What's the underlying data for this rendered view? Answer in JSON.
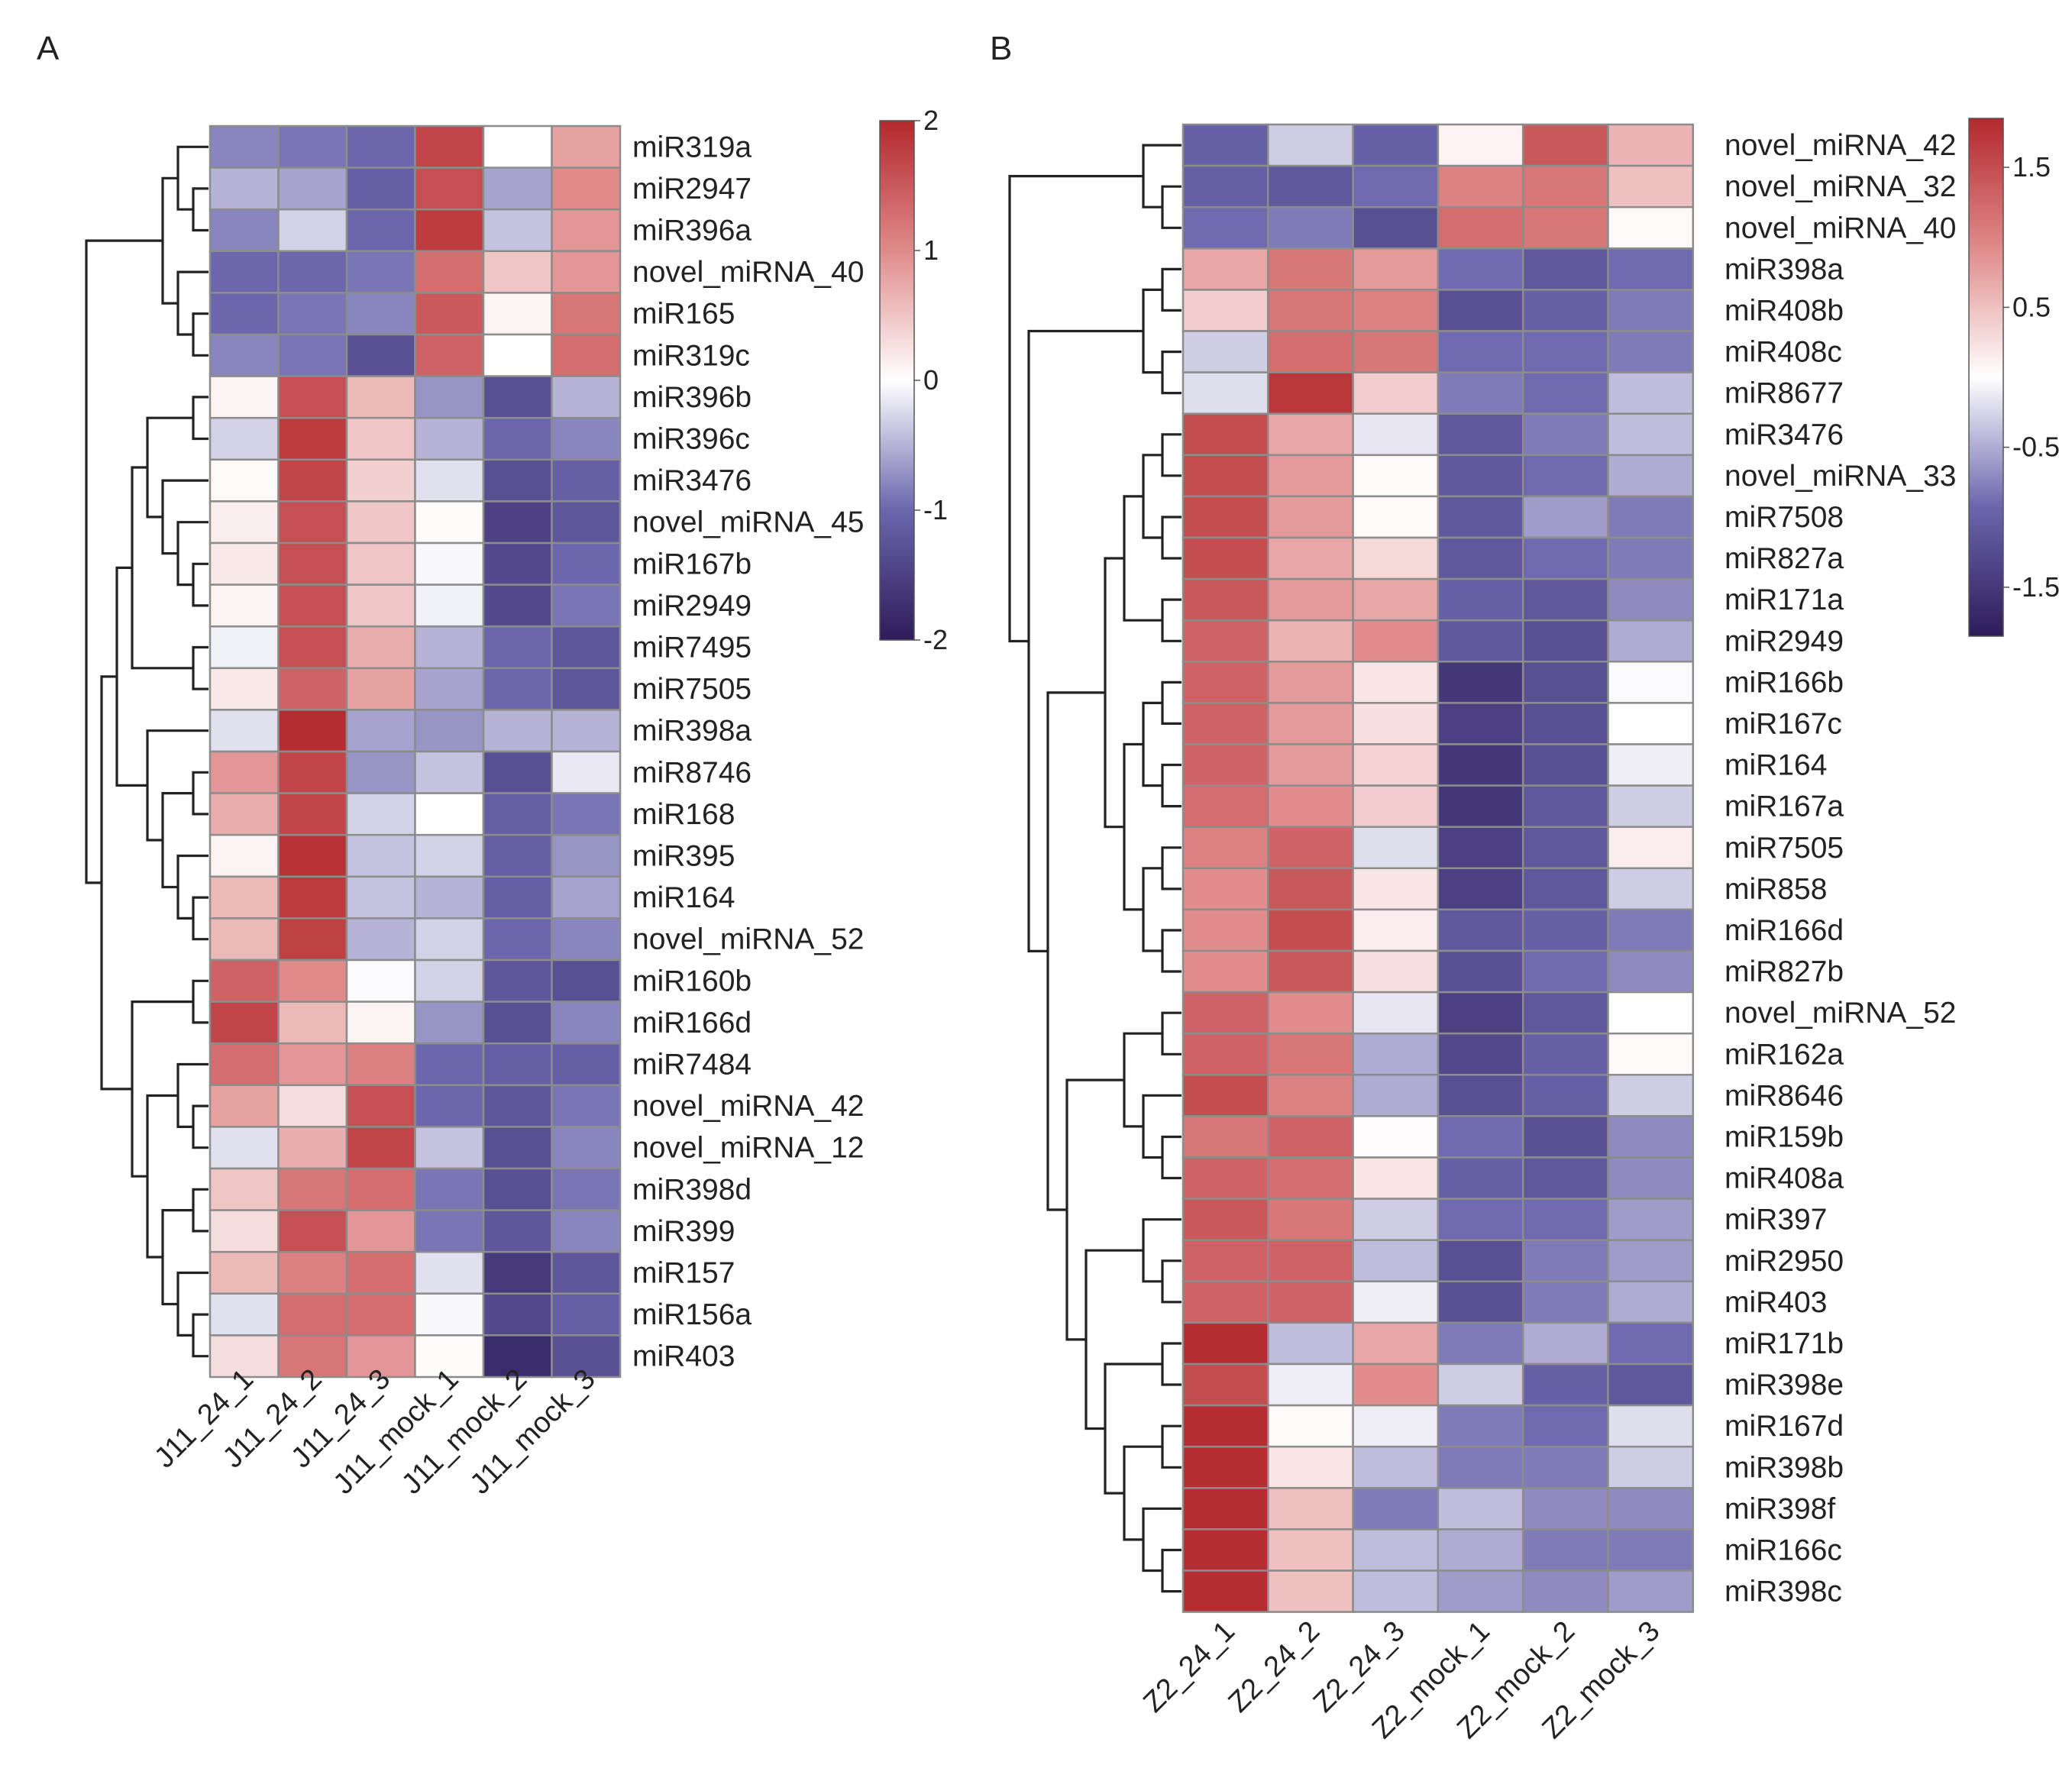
{
  "chart_data": [
    {
      "type": "heatmap",
      "panel_label": "A",
      "colormap": {
        "low": "#2e1c5a",
        "mid_low": "#6b66ad",
        "mid": "#ffffff",
        "mid_high": "#e08a8a",
        "high": "#b3282d"
      },
      "colorbar": {
        "min": -2,
        "max": 2,
        "ticks": [
          2,
          1,
          0,
          -1,
          -2
        ],
        "tick_labels": [
          "2",
          "1",
          "0",
          "-1",
          "-2"
        ]
      },
      "columns": [
        "J11_24_1",
        "J11_24_2",
        "J11_24_3",
        "J11_mock_1",
        "J11_mock_2",
        "J11_mock_3"
      ],
      "rows": [
        "miR319a",
        "miR2947",
        "miR396a",
        "novel_miRNA_40",
        "miR165",
        "miR319c",
        "miR396b",
        "miR396c",
        "miR3476",
        "novel_miRNA_45",
        "miR167b",
        "miR2949",
        "miR7495",
        "miR7505",
        "miR398a",
        "miR8746",
        "miR168",
        "miR395",
        "miR164",
        "novel_miRNA_52",
        "miR160b",
        "miR166d",
        "miR7484",
        "novel_miRNA_42",
        "novel_miRNA_12",
        "miR398d",
        "miR399",
        "miR157",
        "miR156a",
        "miR403"
      ],
      "values": [
        [
          -0.8,
          -0.9,
          -1.0,
          1.7,
          0.0,
          0.8
        ],
        [
          -0.5,
          -0.6,
          -1.1,
          1.6,
          -0.6,
          1.0
        ],
        [
          -0.8,
          -0.3,
          -1.0,
          1.8,
          -0.4,
          0.9
        ],
        [
          -1.0,
          -1.0,
          -0.9,
          1.3,
          0.5,
          0.9
        ],
        [
          -1.0,
          -0.9,
          -0.8,
          1.5,
          0.1,
          1.2
        ],
        [
          -0.8,
          -0.9,
          -1.3,
          1.4,
          0.0,
          1.3
        ],
        [
          0.1,
          1.6,
          0.6,
          -0.7,
          -1.3,
          -0.5
        ],
        [
          -0.3,
          1.8,
          0.5,
          -0.5,
          -1.0,
          -0.8
        ],
        [
          0.05,
          1.7,
          0.4,
          -0.2,
          -1.3,
          -1.1
        ],
        [
          0.15,
          1.6,
          0.5,
          0.03,
          -1.5,
          -1.2
        ],
        [
          0.2,
          1.6,
          0.5,
          -0.05,
          -1.4,
          -1.0
        ],
        [
          0.1,
          1.6,
          0.5,
          -0.1,
          -1.4,
          -0.9
        ],
        [
          -0.1,
          1.6,
          0.7,
          -0.5,
          -1.0,
          -1.2
        ],
        [
          0.2,
          1.4,
          0.8,
          -0.6,
          -1.0,
          -1.2
        ],
        [
          -0.2,
          1.95,
          -0.6,
          -0.7,
          -0.5,
          -0.5
        ],
        [
          0.9,
          1.7,
          -0.7,
          -0.4,
          -1.3,
          -0.15
        ],
        [
          0.7,
          1.7,
          -0.3,
          0.0,
          -1.1,
          -0.9
        ],
        [
          0.1,
          1.9,
          -0.4,
          -0.3,
          -1.1,
          -0.7
        ],
        [
          0.6,
          1.8,
          -0.4,
          -0.5,
          -1.1,
          -0.6
        ],
        [
          0.6,
          1.75,
          -0.5,
          -0.3,
          -1.0,
          -0.8
        ],
        [
          1.4,
          1.0,
          -0.03,
          -0.3,
          -1.2,
          -1.3
        ],
        [
          1.7,
          0.6,
          0.1,
          -0.7,
          -1.3,
          -0.8
        ],
        [
          1.3,
          0.9,
          1.1,
          -1.0,
          -1.1,
          -1.1
        ],
        [
          0.8,
          0.3,
          1.6,
          -1.0,
          -1.2,
          -0.9
        ],
        [
          -0.2,
          0.7,
          1.7,
          -0.4,
          -1.3,
          -0.8
        ],
        [
          0.5,
          1.2,
          1.3,
          -0.9,
          -1.3,
          -0.9
        ],
        [
          0.3,
          1.6,
          0.9,
          -0.9,
          -1.2,
          -0.8
        ],
        [
          0.6,
          1.1,
          1.3,
          -0.2,
          -1.6,
          -1.2
        ],
        [
          -0.2,
          1.3,
          1.3,
          -0.05,
          -1.4,
          -1.1
        ],
        [
          0.3,
          1.2,
          0.9,
          0.03,
          -1.8,
          -1.3
        ]
      ]
    },
    {
      "type": "heatmap",
      "panel_label": "B",
      "colormap": {
        "low": "#2e1c5a",
        "mid_low": "#6b66ad",
        "mid": "#ffffff",
        "mid_high": "#e08a8a",
        "high": "#b3282d"
      },
      "colorbar": {
        "min": -1.85,
        "max": 1.85,
        "ticks": [
          1.5,
          0.5,
          -0.5,
          -1.5
        ],
        "tick_labels": [
          "1.5",
          "0.5",
          "-0.5",
          "-1.5"
        ]
      },
      "columns": [
        "Z2_24_1",
        "Z2_24_2",
        "Z2_24_3",
        "Z2_mock_1",
        "Z2_mock_2",
        "Z2_mock_3"
      ],
      "rows": [
        "novel_miRNA_42",
        "novel_miRNA_32",
        "novel_miRNA_40",
        "miR398a",
        "miR408b",
        "miR408c",
        "miR8677",
        "miR3476",
        "novel_miRNA_33",
        "miR7508",
        "miR827a",
        "miR171a",
        "miR2949",
        "miR166b",
        "miR167c",
        "miR164",
        "miR167a",
        "miR7505",
        "miR858",
        "miR166d",
        "miR827b",
        "novel_miRNA_52",
        "miR162a",
        "miR8646",
        "miR159b",
        "miR408a",
        "miR397",
        "miR2950",
        "miR403",
        "miR171b",
        "miR398e",
        "miR167d",
        "miR398b",
        "miR398f",
        "miR166c",
        "miR398c"
      ],
      "values": [
        [
          -1.0,
          -0.3,
          -1.0,
          0.1,
          1.4,
          0.6
        ],
        [
          -1.0,
          -1.1,
          -0.9,
          1.0,
          1.1,
          0.5
        ],
        [
          -0.9,
          -0.8,
          -1.2,
          1.2,
          1.1,
          0.05
        ],
        [
          0.7,
          1.1,
          0.8,
          -0.9,
          -1.1,
          -0.9
        ],
        [
          0.4,
          1.1,
          1.0,
          -1.2,
          -1.0,
          -0.8
        ],
        [
          -0.3,
          1.2,
          1.1,
          -0.9,
          -0.9,
          -0.8
        ],
        [
          -0.2,
          1.7,
          0.4,
          -0.8,
          -0.9,
          -0.4
        ],
        [
          1.5,
          0.7,
          -0.15,
          -1.1,
          -0.8,
          -0.4
        ],
        [
          1.5,
          0.8,
          0.05,
          -1.1,
          -0.9,
          -0.5
        ],
        [
          1.5,
          0.8,
          0.05,
          -1.1,
          -0.6,
          -0.8
        ],
        [
          1.5,
          0.7,
          0.3,
          -1.1,
          -0.9,
          -0.8
        ],
        [
          1.4,
          0.8,
          0.7,
          -1.0,
          -1.1,
          -0.7
        ],
        [
          1.3,
          0.6,
          0.9,
          -1.1,
          -1.2,
          -0.5
        ],
        [
          1.3,
          0.8,
          0.2,
          -1.5,
          -1.2,
          -0.03
        ],
        [
          1.3,
          0.8,
          0.25,
          -1.4,
          -1.2,
          0.0
        ],
        [
          1.3,
          0.8,
          0.35,
          -1.5,
          -1.2,
          -0.1
        ],
        [
          1.2,
          0.9,
          0.4,
          -1.5,
          -1.1,
          -0.3
        ],
        [
          1.0,
          1.3,
          -0.2,
          -1.4,
          -1.1,
          0.15
        ],
        [
          0.9,
          1.4,
          0.2,
          -1.4,
          -1.1,
          -0.3
        ],
        [
          0.9,
          1.5,
          0.15,
          -1.1,
          -1.0,
          -0.8
        ],
        [
          0.9,
          1.4,
          0.25,
          -1.2,
          -0.9,
          -0.7
        ],
        [
          1.3,
          0.9,
          -0.15,
          -1.4,
          -1.1,
          0.0
        ],
        [
          1.3,
          1.1,
          -0.5,
          -1.3,
          -1.0,
          0.05
        ],
        [
          1.5,
          1.0,
          -0.5,
          -1.2,
          -1.0,
          -0.3
        ],
        [
          1.1,
          1.3,
          0.02,
          -0.9,
          -1.2,
          -0.7
        ],
        [
          1.3,
          1.2,
          0.2,
          -1.0,
          -1.1,
          -0.7
        ],
        [
          1.4,
          1.1,
          -0.3,
          -0.9,
          -0.9,
          -0.6
        ],
        [
          1.3,
          1.3,
          -0.4,
          -1.2,
          -0.8,
          -0.6
        ],
        [
          1.3,
          1.3,
          -0.1,
          -1.2,
          -0.8,
          -0.5
        ],
        [
          1.8,
          -0.4,
          0.7,
          -0.8,
          -0.5,
          -0.9
        ],
        [
          1.5,
          -0.1,
          0.9,
          -0.3,
          -1.0,
          -1.1
        ],
        [
          1.8,
          0.05,
          -0.1,
          -0.8,
          -0.9,
          -0.2
        ],
        [
          1.8,
          0.2,
          -0.4,
          -0.8,
          -0.8,
          -0.3
        ],
        [
          1.8,
          0.5,
          -0.8,
          -0.4,
          -0.7,
          -0.7
        ],
        [
          1.8,
          0.5,
          -0.4,
          -0.5,
          -0.8,
          -0.8
        ],
        [
          1.8,
          0.5,
          -0.4,
          -0.6,
          -0.7,
          -0.6
        ]
      ]
    }
  ]
}
